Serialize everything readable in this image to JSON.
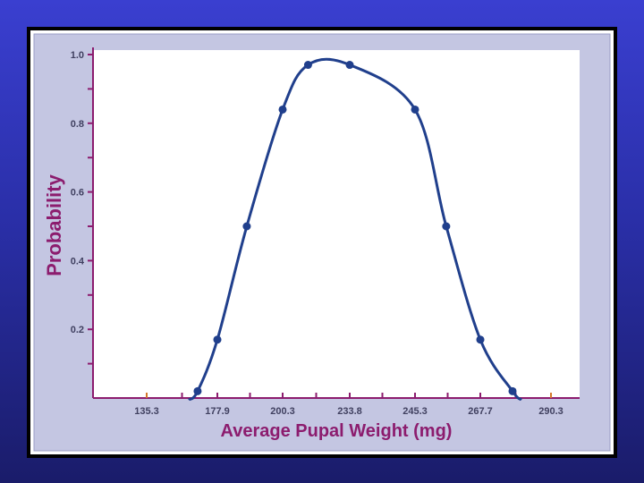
{
  "colors": {
    "panel_bg": "#c4c6e2",
    "plot_bg": "#ffffff",
    "axis": "#8c1c6e",
    "curve": "#203f8c",
    "label": "#8c1c6e",
    "tick_mark_orange": "#d4772a"
  },
  "chart_data": {
    "type": "line",
    "title": "",
    "xlabel": "Average Pupal Weight (mg)",
    "ylabel": "Probability",
    "x_tick_labels": [
      "135.3",
      "177.9",
      "200.3",
      "233.8",
      "245.3",
      "267.7",
      "290.3"
    ],
    "y_tick_labels": [
      "1.0",
      "0.8",
      "0.6",
      "0.4",
      "0.2"
    ],
    "y_tick_values": [
      1.0,
      0.8,
      0.6,
      0.4,
      0.2
    ],
    "ylim": [
      0,
      1.0
    ],
    "grid": false,
    "series": [
      {
        "points": [
          {
            "x": 166,
            "y": 0.02
          },
          {
            "x": 177.9,
            "y": 0.17
          },
          {
            "x": 188,
            "y": 0.5
          },
          {
            "x": 200.3,
            "y": 0.84
          },
          {
            "x": 213,
            "y": 0.97
          },
          {
            "x": 233.8,
            "y": 0.97
          },
          {
            "x": 245.3,
            "y": 0.84
          },
          {
            "x": 256,
            "y": 0.5
          },
          {
            "x": 267.7,
            "y": 0.17
          },
          {
            "x": 278,
            "y": 0.02
          }
        ]
      }
    ]
  }
}
